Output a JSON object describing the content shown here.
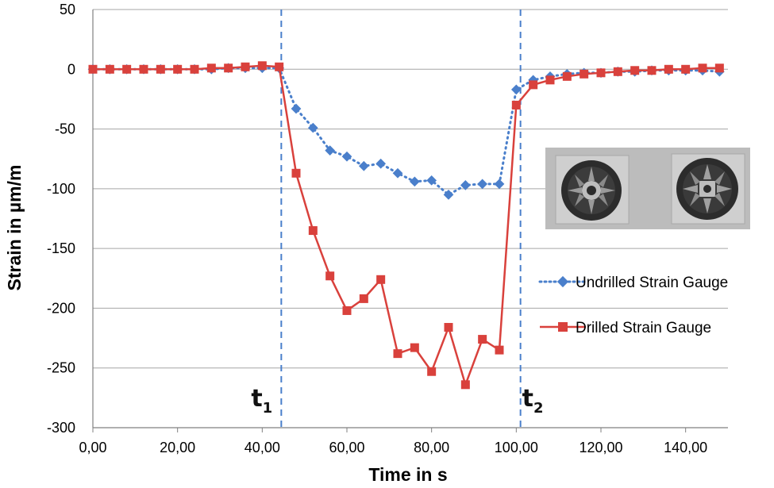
{
  "chart_data": {
    "type": "line",
    "title": "",
    "xlabel": "Time in s",
    "ylabel": "Strain in µm/m",
    "xlim": [
      0,
      150
    ],
    "ylim": [
      -300,
      50
    ],
    "xticks": [
      0,
      20,
      40,
      60,
      80,
      100,
      120,
      140
    ],
    "xtick_labels": [
      "0,00",
      "20,00",
      "40,00",
      "60,00",
      "80,00",
      "100,00",
      "120,00",
      "140,00"
    ],
    "yticks": [
      50,
      0,
      -50,
      -100,
      -150,
      -200,
      -250,
      -300
    ],
    "ytick_labels": [
      "50",
      "0",
      "-50",
      "-100",
      "-150",
      "-200",
      "-250",
      "-300"
    ],
    "grid": "horizontal",
    "legend_position": "right",
    "series": [
      {
        "name": "Undrilled Strain Gauge",
        "color": "#4a7fcb",
        "line_style": "dotted",
        "marker": "diamond",
        "x": [
          0,
          4,
          8,
          12,
          16,
          20,
          24,
          28,
          32,
          36,
          40,
          44,
          48,
          52,
          56,
          60,
          64,
          68,
          72,
          76,
          80,
          84,
          88,
          92,
          96,
          100,
          104,
          108,
          112,
          116,
          120,
          124,
          128,
          132,
          136,
          140,
          144,
          148
        ],
        "y": [
          0,
          0,
          0,
          0,
          0,
          0,
          0,
          0,
          1,
          1,
          1,
          1,
          -33,
          -49,
          -68,
          -73,
          -81,
          -79,
          -87,
          -94,
          -93,
          -105,
          -97,
          -96,
          -96,
          -17,
          -9,
          -6,
          -4,
          -3,
          -3,
          -2,
          -2,
          -1,
          -1,
          -1,
          -1,
          -2
        ]
      },
      {
        "name": "Drilled Strain Gauge",
        "color": "#d9413c",
        "line_style": "solid",
        "marker": "square",
        "x": [
          0,
          4,
          8,
          12,
          16,
          20,
          24,
          28,
          32,
          36,
          40,
          44,
          48,
          52,
          56,
          60,
          64,
          68,
          72,
          76,
          80,
          84,
          88,
          92,
          96,
          100,
          104,
          108,
          112,
          116,
          120,
          124,
          128,
          132,
          136,
          140,
          144,
          148
        ],
        "y": [
          0,
          0,
          0,
          0,
          0,
          0,
          0,
          1,
          1,
          2,
          3,
          2,
          -87,
          -135,
          -173,
          -202,
          -192,
          -176,
          -238,
          -233,
          -253,
          -216,
          -264,
          -226,
          -235,
          -30,
          -13,
          -9,
          -6,
          -4,
          -3,
          -2,
          -1,
          -1,
          0,
          0,
          1,
          1
        ]
      }
    ],
    "annotations": [
      {
        "base": "t",
        "sub": "1",
        "x": 44.5,
        "line_color": "#4a7fcb",
        "line_style": "dashed"
      },
      {
        "base": "t",
        "sub": "2",
        "x": 101,
        "line_color": "#4a7fcb",
        "line_style": "dashed"
      }
    ],
    "inset_photo": {
      "content": "two strain gauge rotor specimens, grayscale"
    }
  }
}
